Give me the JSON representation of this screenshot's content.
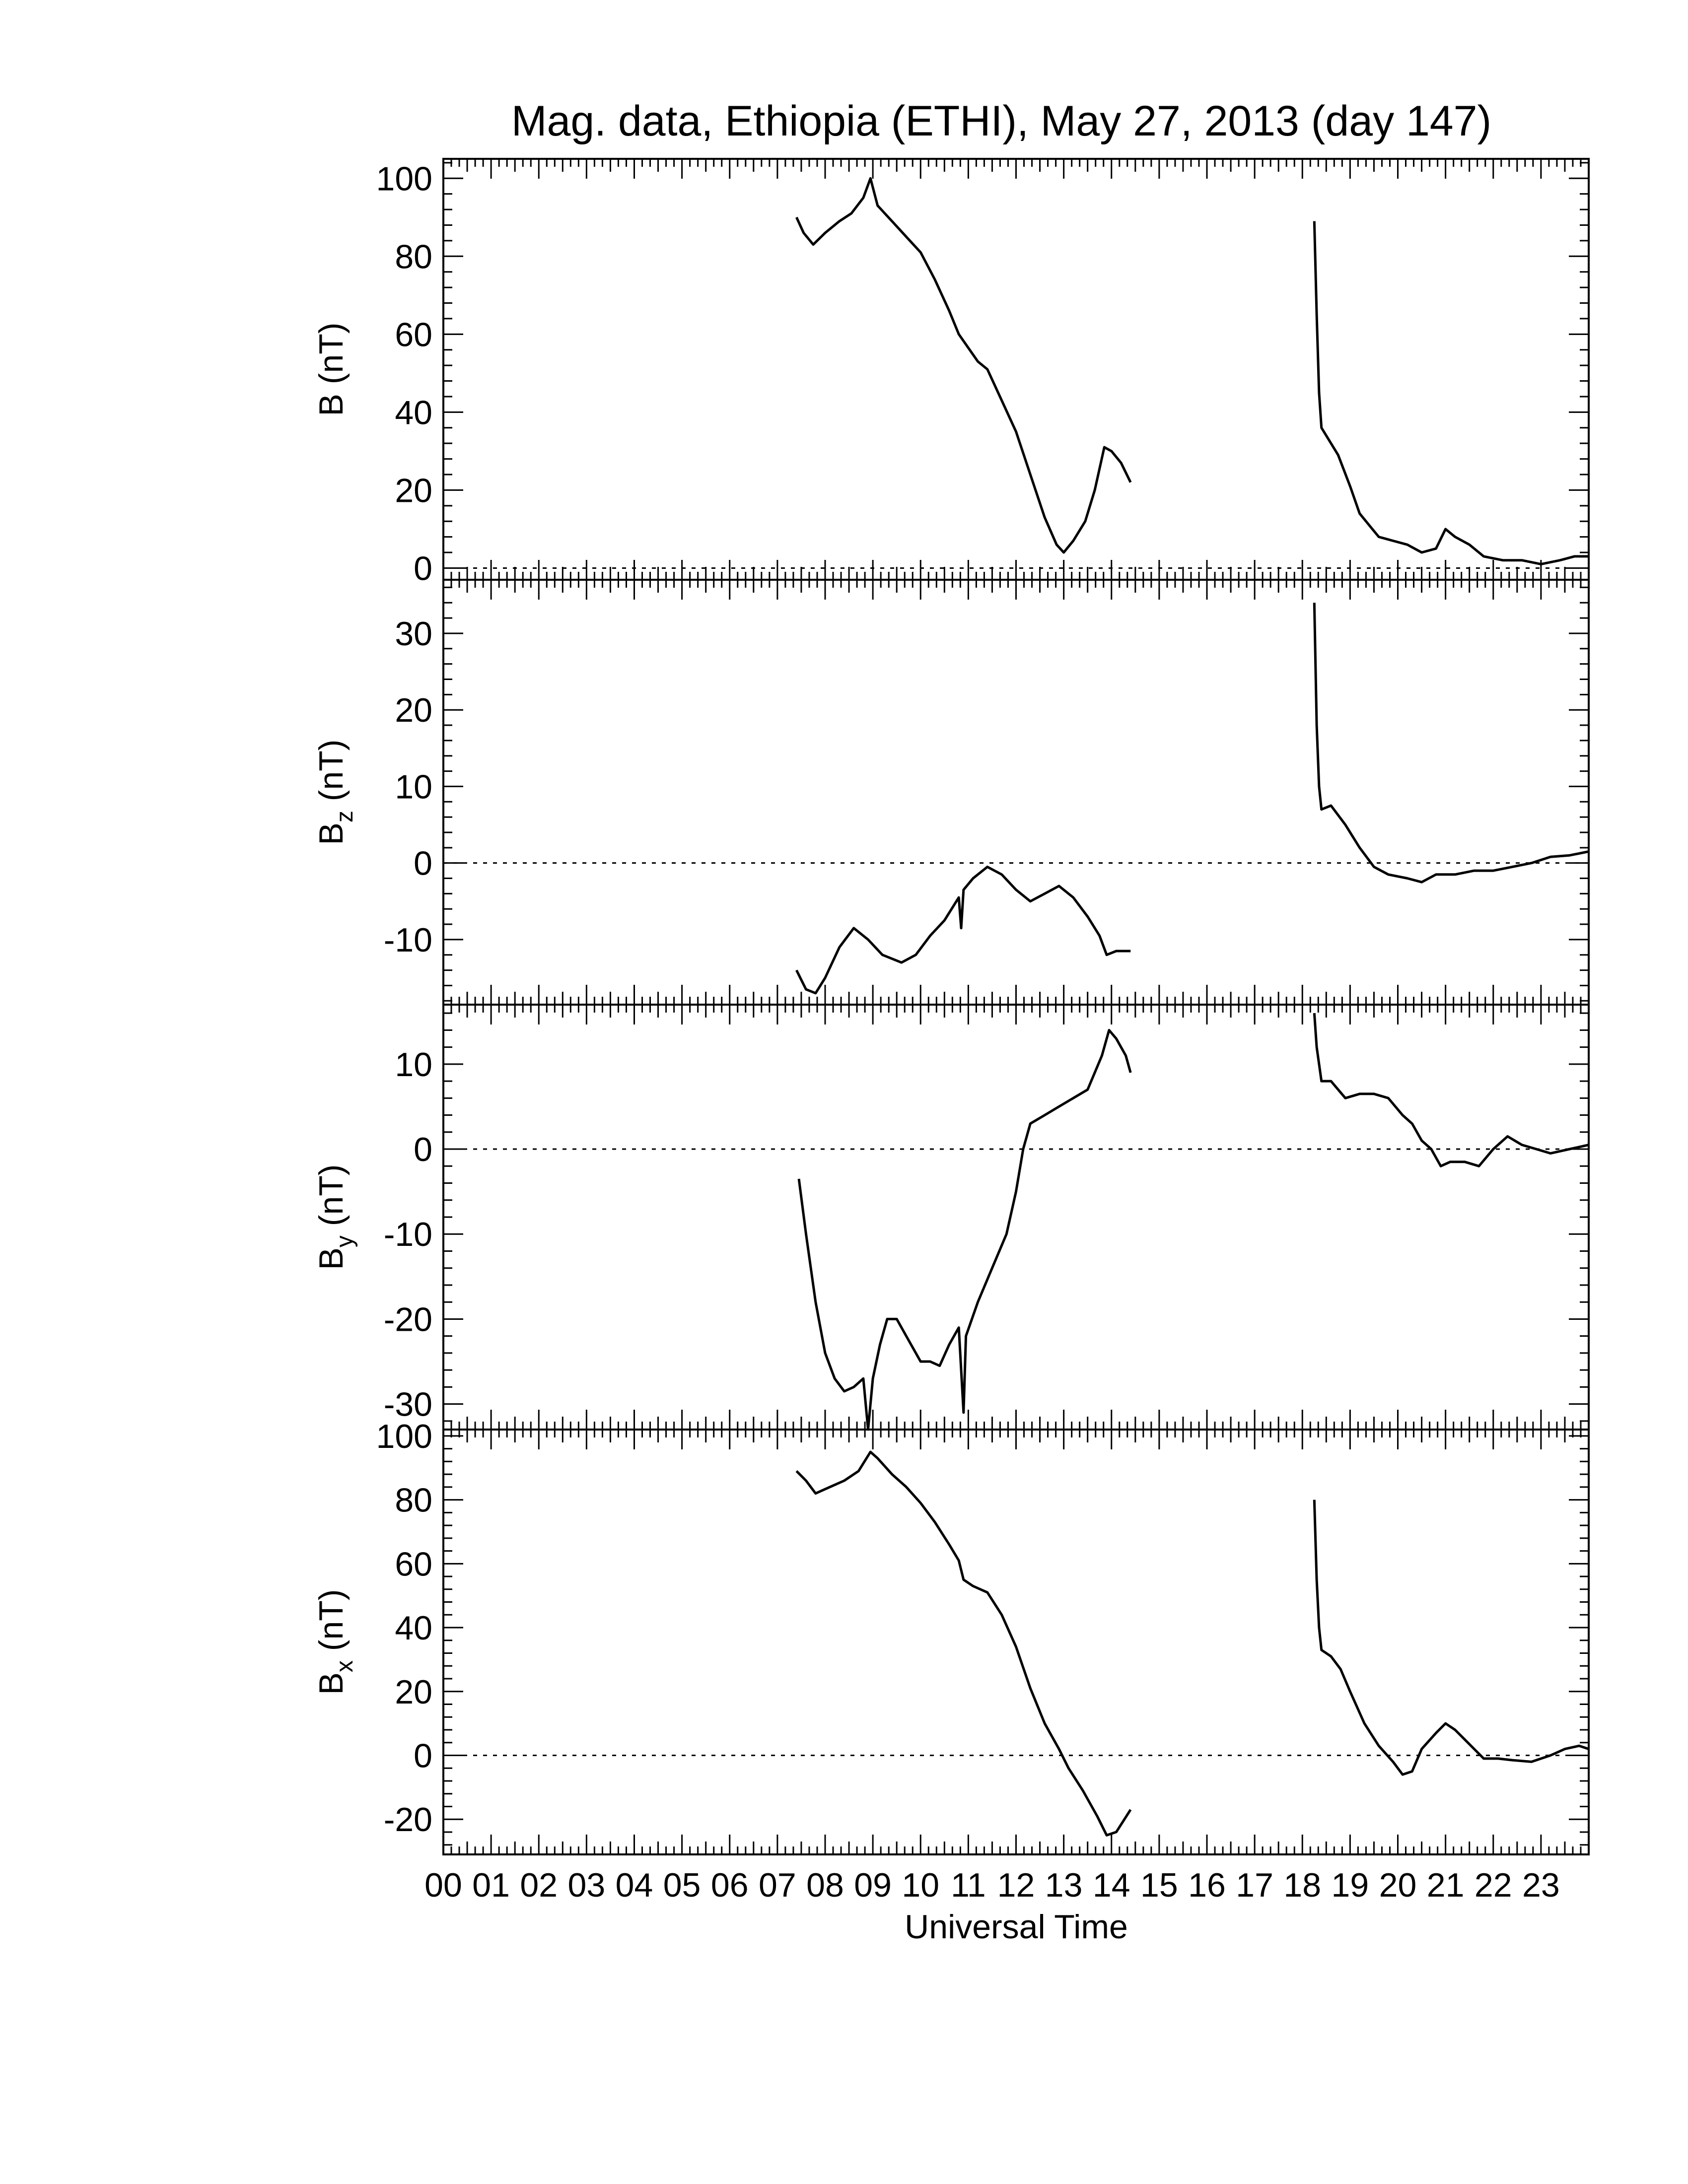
{
  "chart_data": {
    "type": "line",
    "title": "Mag. data, Ethiopia (ETHI), May 27, 2013 (day 147)",
    "xlabel": "Universal Time",
    "x_unit": "hours UT",
    "xlim": [
      0,
      24
    ],
    "x_ticks": [
      "00",
      "01",
      "02",
      "03",
      "04",
      "05",
      "06",
      "07",
      "08",
      "09",
      "10",
      "11",
      "12",
      "13",
      "14",
      "15",
      "16",
      "17",
      "18",
      "19",
      "20",
      "21",
      "22",
      "23"
    ],
    "grid": false,
    "panels": [
      {
        "id": "B",
        "ylabel": "B (nT)",
        "ylim": [
          -3,
          105
        ],
        "y_ticks": [
          0,
          20,
          40,
          60,
          80,
          100
        ],
        "y_tick_labels": [
          "0",
          "20",
          "40",
          "60",
          "80",
          "100"
        ],
        "zero_line": true,
        "segments": [
          [
            [
              7.4,
              90
            ],
            [
              7.55,
              86
            ],
            [
              7.75,
              83
            ],
            [
              8.0,
              86
            ],
            [
              8.3,
              89
            ],
            [
              8.55,
              91
            ],
            [
              8.8,
              95
            ],
            [
              8.95,
              100
            ],
            [
              9.1,
              93
            ],
            [
              9.4,
              89
            ],
            [
              9.7,
              85
            ],
            [
              10.0,
              81
            ],
            [
              10.3,
              74
            ],
            [
              10.6,
              66
            ],
            [
              10.8,
              60
            ],
            [
              11.2,
              53
            ],
            [
              11.4,
              51
            ],
            [
              11.7,
              43
            ],
            [
              12.0,
              35
            ],
            [
              12.3,
              24
            ],
            [
              12.6,
              13
            ],
            [
              12.85,
              6
            ],
            [
              13.0,
              4
            ],
            [
              13.2,
              7
            ],
            [
              13.45,
              12
            ],
            [
              13.65,
              20
            ],
            [
              13.85,
              31
            ],
            [
              14.0,
              30
            ],
            [
              14.2,
              27
            ],
            [
              14.4,
              22
            ]
          ],
          [
            [
              18.25,
              89
            ],
            [
              18.3,
              65
            ],
            [
              18.35,
              45
            ],
            [
              18.4,
              36
            ],
            [
              18.55,
              33
            ],
            [
              18.75,
              29
            ],
            [
              19.0,
              21
            ],
            [
              19.2,
              14
            ],
            [
              19.4,
              11
            ],
            [
              19.6,
              8
            ],
            [
              19.9,
              7
            ],
            [
              20.2,
              6
            ],
            [
              20.5,
              4
            ],
            [
              20.8,
              5
            ],
            [
              21.0,
              10
            ],
            [
              21.2,
              8
            ],
            [
              21.5,
              6
            ],
            [
              21.8,
              3
            ],
            [
              22.2,
              2
            ],
            [
              22.6,
              2
            ],
            [
              23.0,
              1
            ],
            [
              23.4,
              2
            ],
            [
              23.7,
              3
            ],
            [
              24.0,
              3
            ]
          ]
        ]
      },
      {
        "id": "Bz",
        "ylabel": "B",
        "ylabel_subscript": "z",
        "ylabel_unit": "(nT)",
        "ylim": [
          -18.5,
          37
        ],
        "y_ticks": [
          -10,
          0,
          10,
          20,
          30
        ],
        "y_tick_labels": [
          "-10",
          "0",
          "10",
          "20",
          "30"
        ],
        "zero_line": true,
        "segments": [
          [
            [
              7.4,
              -14
            ],
            [
              7.6,
              -16.5
            ],
            [
              7.8,
              -17
            ],
            [
              8.0,
              -15
            ],
            [
              8.3,
              -11
            ],
            [
              8.6,
              -8.5
            ],
            [
              8.9,
              -10
            ],
            [
              9.2,
              -12
            ],
            [
              9.6,
              -13
            ],
            [
              9.9,
              -12
            ],
            [
              10.2,
              -9.5
            ],
            [
              10.5,
              -7.5
            ],
            [
              10.8,
              -4.5
            ],
            [
              10.85,
              -8.5
            ],
            [
              10.9,
              -3.5
            ],
            [
              11.1,
              -2
            ],
            [
              11.4,
              -0.5
            ],
            [
              11.7,
              -1.5
            ],
            [
              12.0,
              -3.5
            ],
            [
              12.3,
              -5
            ],
            [
              12.6,
              -4
            ],
            [
              12.9,
              -3
            ],
            [
              13.2,
              -4.5
            ],
            [
              13.5,
              -7
            ],
            [
              13.75,
              -9.5
            ],
            [
              13.9,
              -12
            ],
            [
              14.1,
              -11.5
            ],
            [
              14.4,
              -11.5
            ]
          ],
          [
            [
              18.25,
              34
            ],
            [
              18.3,
              18
            ],
            [
              18.35,
              10
            ],
            [
              18.4,
              7
            ],
            [
              18.6,
              7.5
            ],
            [
              18.9,
              5
            ],
            [
              19.2,
              2
            ],
            [
              19.5,
              -0.5
            ],
            [
              19.8,
              -1.5
            ],
            [
              20.2,
              -2
            ],
            [
              20.5,
              -2.5
            ],
            [
              20.8,
              -1.5
            ],
            [
              21.2,
              -1.5
            ],
            [
              21.6,
              -1
            ],
            [
              22.0,
              -1
            ],
            [
              22.4,
              -0.5
            ],
            [
              22.8,
              0
            ],
            [
              23.2,
              0.8
            ],
            [
              23.6,
              1
            ],
            [
              24.0,
              1.5
            ]
          ]
        ]
      },
      {
        "id": "By",
        "ylabel": "B",
        "ylabel_subscript": "y",
        "ylabel_unit": "(nT)",
        "ylim": [
          -33,
          17
        ],
        "y_ticks": [
          -30,
          -20,
          -10,
          0,
          10
        ],
        "y_tick_labels": [
          "-30",
          "-20",
          "-10",
          "0",
          "10"
        ],
        "zero_line": true,
        "segments": [
          [
            [
              7.45,
              -3.5
            ],
            [
              7.6,
              -10
            ],
            [
              7.8,
              -18
            ],
            [
              8.0,
              -24
            ],
            [
              8.2,
              -27
            ],
            [
              8.4,
              -28.5
            ],
            [
              8.6,
              -28
            ],
            [
              8.8,
              -27
            ],
            [
              8.9,
              -33
            ],
            [
              9.0,
              -27
            ],
            [
              9.15,
              -23
            ],
            [
              9.3,
              -20
            ],
            [
              9.5,
              -20
            ],
            [
              9.7,
              -22
            ],
            [
              10.0,
              -25
            ],
            [
              10.2,
              -25
            ],
            [
              10.4,
              -25.5
            ],
            [
              10.6,
              -23
            ],
            [
              10.8,
              -21
            ],
            [
              10.9,
              -31
            ],
            [
              10.95,
              -22
            ],
            [
              11.2,
              -18
            ],
            [
              11.5,
              -14
            ],
            [
              11.8,
              -10
            ],
            [
              12.0,
              -5
            ],
            [
              12.15,
              0
            ],
            [
              12.3,
              3
            ],
            [
              12.6,
              4
            ],
            [
              12.9,
              5
            ],
            [
              13.2,
              6
            ],
            [
              13.5,
              7
            ],
            [
              13.8,
              11
            ],
            [
              13.95,
              14
            ],
            [
              14.1,
              13
            ],
            [
              14.3,
              11
            ],
            [
              14.4,
              9
            ]
          ],
          [
            [
              18.25,
              16
            ],
            [
              18.3,
              12
            ],
            [
              18.4,
              8
            ],
            [
              18.6,
              8
            ],
            [
              18.9,
              6
            ],
            [
              19.2,
              6.5
            ],
            [
              19.5,
              6.5
            ],
            [
              19.8,
              6
            ],
            [
              20.1,
              4
            ],
            [
              20.3,
              3
            ],
            [
              20.5,
              1
            ],
            [
              20.7,
              0
            ],
            [
              20.9,
              -2
            ],
            [
              21.1,
              -1.5
            ],
            [
              21.4,
              -1.5
            ],
            [
              21.7,
              -2
            ],
            [
              22.0,
              0
            ],
            [
              22.3,
              1.5
            ],
            [
              22.6,
              0.5
            ],
            [
              22.9,
              0
            ],
            [
              23.2,
              -0.5
            ],
            [
              23.6,
              0
            ],
            [
              24.0,
              0.5
            ]
          ]
        ]
      },
      {
        "id": "Bx",
        "ylabel": "B",
        "ylabel_subscript": "x",
        "ylabel_unit": "(nT)",
        "ylim": [
          -31,
          102
        ],
        "y_ticks": [
          -20,
          0,
          20,
          40,
          60,
          80,
          100
        ],
        "y_tick_labels": [
          "-20",
          "0",
          "20",
          "40",
          "60",
          "80",
          "100"
        ],
        "zero_line": true,
        "segments": [
          [
            [
              7.4,
              89
            ],
            [
              7.6,
              86
            ],
            [
              7.8,
              82
            ],
            [
              8.1,
              84
            ],
            [
              8.4,
              86
            ],
            [
              8.7,
              89
            ],
            [
              8.95,
              95
            ],
            [
              9.1,
              93
            ],
            [
              9.4,
              88
            ],
            [
              9.7,
              84
            ],
            [
              10.0,
              79
            ],
            [
              10.3,
              73
            ],
            [
              10.6,
              66
            ],
            [
              10.8,
              61
            ],
            [
              10.9,
              55
            ],
            [
              11.1,
              53
            ],
            [
              11.4,
              51
            ],
            [
              11.7,
              44
            ],
            [
              12.0,
              34
            ],
            [
              12.3,
              21
            ],
            [
              12.6,
              10
            ],
            [
              12.9,
              2
            ],
            [
              13.1,
              -4
            ],
            [
              13.4,
              -11
            ],
            [
              13.7,
              -19
            ],
            [
              13.9,
              -25
            ],
            [
              14.1,
              -24
            ],
            [
              14.4,
              -17
            ]
          ],
          [
            [
              18.25,
              80
            ],
            [
              18.3,
              55
            ],
            [
              18.35,
              40
            ],
            [
              18.4,
              33
            ],
            [
              18.6,
              31
            ],
            [
              18.8,
              27
            ],
            [
              19.0,
              20
            ],
            [
              19.3,
              10
            ],
            [
              19.6,
              3
            ],
            [
              19.9,
              -2
            ],
            [
              20.1,
              -6
            ],
            [
              20.3,
              -5
            ],
            [
              20.5,
              2
            ],
            [
              20.8,
              7
            ],
            [
              21.0,
              10
            ],
            [
              21.2,
              8
            ],
            [
              21.4,
              5
            ],
            [
              21.6,
              2
            ],
            [
              21.8,
              -1
            ],
            [
              22.1,
              -1
            ],
            [
              22.4,
              -1.5
            ],
            [
              22.8,
              -2
            ],
            [
              23.2,
              0
            ],
            [
              23.5,
              2
            ],
            [
              23.8,
              3
            ],
            [
              24.0,
              2
            ]
          ]
        ]
      }
    ]
  }
}
